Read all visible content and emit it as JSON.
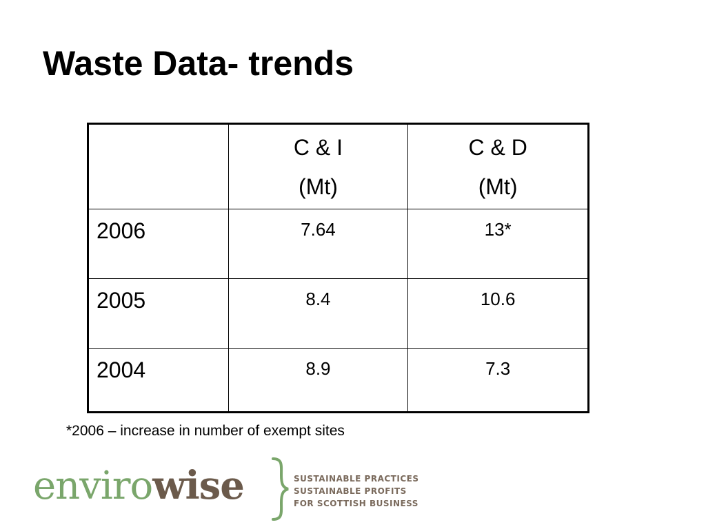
{
  "slide": {
    "title": "Waste Data- trends"
  },
  "table": {
    "header": {
      "year": "",
      "ci_line1": "C & I",
      "ci_line2": "(Mt)",
      "cd_line1": "C & D",
      "cd_line2": "(Mt)"
    },
    "rows": [
      {
        "year": "2006",
        "ci": "7.64",
        "cd": "13*"
      },
      {
        "year": "2005",
        "ci": "8.4",
        "cd": "10.6"
      },
      {
        "year": "2004",
        "ci": "8.9",
        "cd": "7.3"
      }
    ]
  },
  "footnote": "*2006 – increase in number of exempt sites",
  "logo": {
    "word_part1": "enviro",
    "word_part2": "wise",
    "tagline": [
      "SUSTAINABLE PRACTICES",
      "SUSTAINABLE PROFITS",
      "FOR SCOTTISH BUSINESS"
    ],
    "colors": {
      "enviro": "#7aa66b",
      "wise": "#6b5a4b",
      "tagline": "#7a6a5c"
    }
  }
}
